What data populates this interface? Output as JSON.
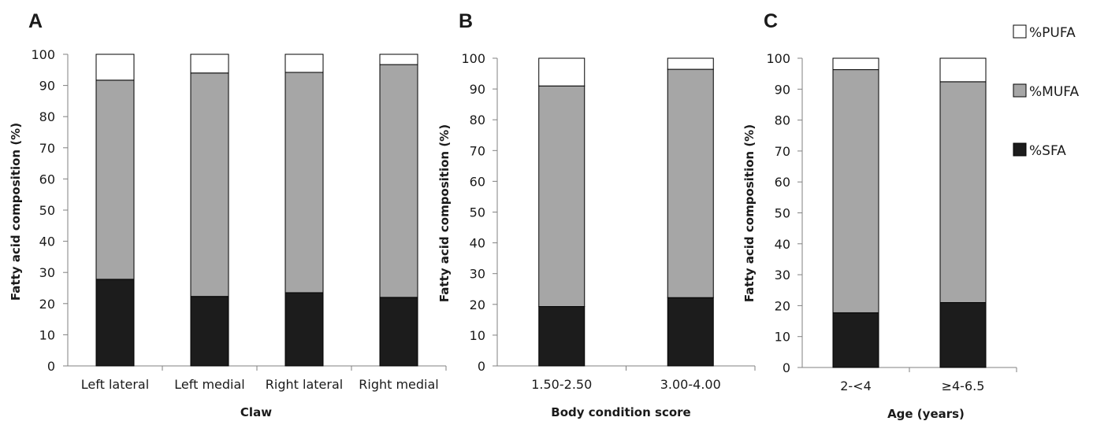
{
  "colors": {
    "SFA": "#1c1c1c",
    "MUFA": "#a6a6a6",
    "PUFA": "#ffffff",
    "axis": "#808080"
  },
  "legend": {
    "items": [
      {
        "label": "%PUFA",
        "key": "PUFA"
      },
      {
        "label": "%MUFA",
        "key": "MUFA"
      },
      {
        "label": "%SFA",
        "key": "SFA"
      }
    ]
  },
  "chart_data": [
    {
      "type": "bar",
      "panel": "A",
      "stacked": true,
      "ylabel": "Fatty acid composition (%)",
      "xlabel": "Claw",
      "ylim": [
        0,
        100
      ],
      "yticks": [
        0,
        10,
        20,
        30,
        40,
        50,
        60,
        70,
        80,
        90,
        100
      ],
      "categories": [
        "Left lateral",
        "Left medial",
        "Right lateral",
        "Right medial"
      ],
      "series": [
        {
          "name": "%SFA",
          "key": "SFA",
          "values": [
            27.8,
            22.3,
            23.5,
            22.0
          ]
        },
        {
          "name": "%MUFA",
          "key": "MUFA",
          "values": [
            63.9,
            71.7,
            70.7,
            74.7
          ]
        },
        {
          "name": "%PUFA",
          "key": "PUFA",
          "values": [
            8.3,
            6.0,
            5.8,
            3.3
          ]
        }
      ]
    },
    {
      "type": "bar",
      "panel": "B",
      "stacked": true,
      "ylabel": "Fatty acid composition (%)",
      "xlabel": "Body condition score",
      "ylim": [
        0,
        100
      ],
      "yticks": [
        0,
        10,
        20,
        30,
        40,
        50,
        60,
        70,
        80,
        90,
        100
      ],
      "categories": [
        "1.50-2.50",
        "3.00-4.00"
      ],
      "series": [
        {
          "name": "%SFA",
          "key": "SFA",
          "values": [
            19.3,
            22.2
          ]
        },
        {
          "name": "%MUFA",
          "key": "MUFA",
          "values": [
            71.7,
            74.2
          ]
        },
        {
          "name": "%PUFA",
          "key": "PUFA",
          "values": [
            9.0,
            3.6
          ]
        }
      ]
    },
    {
      "type": "bar",
      "panel": "C",
      "stacked": true,
      "ylabel": "Fatty acid composition (%)",
      "xlabel": "Age (years)",
      "ylim": [
        0,
        100
      ],
      "yticks": [
        0,
        10,
        20,
        30,
        40,
        50,
        60,
        70,
        80,
        90,
        100
      ],
      "categories": [
        "2-<4",
        "≥4-6.5"
      ],
      "series": [
        {
          "name": "%SFA",
          "key": "SFA",
          "values": [
            17.7,
            21.0
          ]
        },
        {
          "name": "%MUFA",
          "key": "MUFA",
          "values": [
            78.6,
            71.4
          ]
        },
        {
          "name": "%PUFA",
          "key": "PUFA",
          "values": [
            3.7,
            7.6
          ]
        }
      ]
    }
  ]
}
